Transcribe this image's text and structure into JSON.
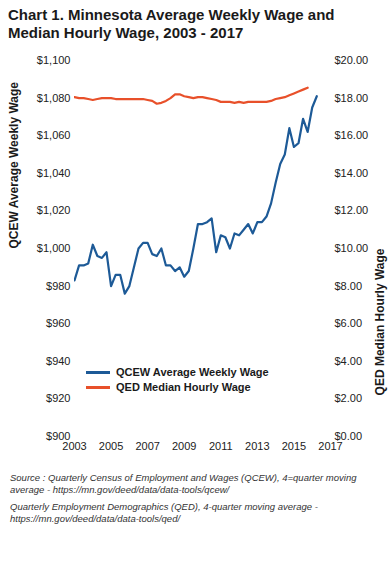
{
  "chart_data": {
    "type": "line",
    "title": "Chart 1. Minnesota Average Weekly Wage and Median Hourly Wage, 2003 - 2017",
    "y_label": "QCEW Average Weekly Wage",
    "y2_label": "QED Median Hourly Wage",
    "caption": [
      "Source : Quarterly Census of Employment and Wages (QCEW), 4=quarter moving average - https://mn.gov/deed/data/data-tools/qcew/",
      "Quarterly Employment Demographics (QED), 4-quarter moving average - https://mn.gov/deed/data/data-tools/qed/"
    ],
    "legend": "lower left",
    "grid": false,
    "x": [
      2003,
      2003.25,
      2003.5,
      2003.75,
      2004,
      2004.25,
      2004.5,
      2004.75,
      2005,
      2005.25,
      2005.5,
      2005.75,
      2006,
      2006.25,
      2006.5,
      2006.75,
      2007,
      2007.25,
      2007.5,
      2007.75,
      2008,
      2008.25,
      2008.5,
      2008.75,
      2009,
      2009.25,
      2009.5,
      2009.75,
      2010,
      2010.25,
      2010.5,
      2010.75,
      2011,
      2011.25,
      2011.5,
      2011.75,
      2012,
      2012.25,
      2012.5,
      2012.75,
      2013,
      2013.25,
      2013.5,
      2013.75,
      2014,
      2014.25,
      2014.5,
      2014.75,
      2015,
      2015.25,
      2015.5,
      2015.75,
      2016,
      2016.25
    ],
    "xlim": [
      2003,
      2017
    ],
    "xticks": [
      2003,
      2005,
      2007,
      2009,
      2011,
      2013,
      2015,
      2017
    ],
    "ylim": [
      900,
      1100
    ],
    "yticks": [
      {
        "value": 900,
        "label": "$900"
      },
      {
        "value": 920,
        "label": "$920"
      },
      {
        "value": 940,
        "label": "$940"
      },
      {
        "value": 960,
        "label": "$960"
      },
      {
        "value": 980,
        "label": "$980"
      },
      {
        "value": 1000,
        "label": "$1,000"
      },
      {
        "value": 1020,
        "label": "$1,020"
      },
      {
        "value": 1040,
        "label": "$1,040"
      },
      {
        "value": 1060,
        "label": "$1,060"
      },
      {
        "value": 1080,
        "label": "$1,080"
      },
      {
        "value": 1100,
        "label": "$1,100"
      }
    ],
    "y2lim": [
      0,
      20
    ],
    "y2ticks": [
      {
        "value": 0,
        "label": "$0.00"
      },
      {
        "value": 2,
        "label": "$2.00"
      },
      {
        "value": 4,
        "label": "$4.00"
      },
      {
        "value": 6,
        "label": "$6.00"
      },
      {
        "value": 8,
        "label": "$8.00"
      },
      {
        "value": 10,
        "label": "$10.00"
      },
      {
        "value": 12,
        "label": "$12.00"
      },
      {
        "value": 14,
        "label": "$14.00"
      },
      {
        "value": 16,
        "label": "$16.00"
      },
      {
        "value": 18,
        "label": "$18.00"
      },
      {
        "value": 20,
        "label": "$20.00"
      }
    ],
    "series": [
      {
        "name": "QCEW Average Weekly Wage",
        "color": "#1d5a97",
        "axis": "y",
        "values": [
          983,
          991,
          991,
          992,
          1002,
          996,
          995,
          998,
          980,
          986,
          986,
          976,
          980,
          990,
          1000,
          1003,
          1003,
          997,
          996,
          1000,
          991,
          991,
          988,
          990,
          985,
          988,
          1000,
          1013,
          1013,
          1014,
          1016,
          998,
          1007,
          1006,
          1000,
          1008,
          1007,
          1010,
          1013,
          1008,
          1014,
          1014,
          1017,
          1024,
          1035,
          1045,
          1050,
          1064,
          1054,
          1056,
          1069,
          1062,
          1075,
          1081
        ]
      },
      {
        "name": "QED Median Hourly Wage",
        "color": "#e8502a",
        "axis": "y2",
        "values": [
          18.05,
          18.0,
          18.0,
          17.95,
          17.9,
          17.95,
          18.0,
          18.0,
          18.0,
          17.95,
          17.95,
          17.95,
          17.95,
          17.95,
          17.95,
          17.95,
          17.9,
          17.85,
          17.7,
          17.75,
          17.85,
          18.0,
          18.2,
          18.2,
          18.1,
          18.05,
          18.0,
          18.05,
          18.05,
          18.0,
          17.95,
          17.9,
          17.8,
          17.8,
          17.8,
          17.75,
          17.8,
          17.75,
          17.8,
          17.8,
          17.8,
          17.8,
          17.8,
          17.85,
          17.95,
          18.0,
          18.05,
          18.15,
          18.25,
          18.35,
          18.45,
          18.55,
          null,
          null
        ]
      }
    ]
  }
}
